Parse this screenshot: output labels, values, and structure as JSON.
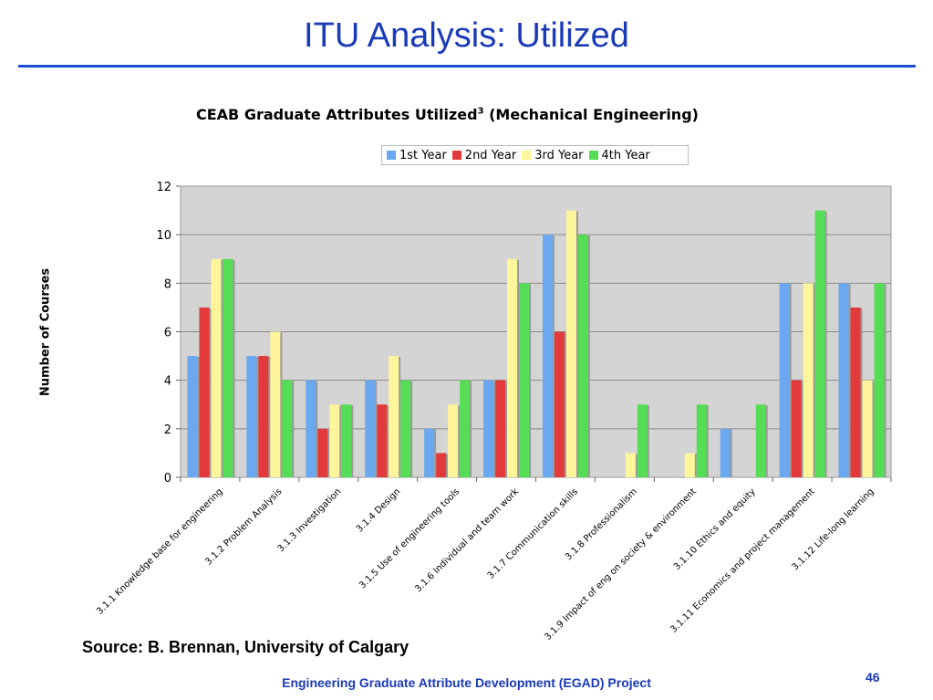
{
  "slide": {
    "title": "ITU Analysis: Utilized",
    "source": "Source: B.  Brennan, University of Calgary",
    "footer": "Engineering Graduate Attribute Development (EGAD) Project",
    "page_number": "46"
  },
  "chart_data": {
    "type": "bar",
    "title": "CEAB Graduate Attributes Utilized",
    "title_superscript": "3",
    "title_suffix": " (Mechanical Engineering)",
    "ylabel": "Number of Courses",
    "xlabel": "",
    "ylim": [
      0,
      12
    ],
    "yticks": [
      0,
      2,
      4,
      6,
      8,
      10,
      12
    ],
    "grid": true,
    "legend_position": "top",
    "categories": [
      "3.1.1 Knowledge base for engineering",
      "3.1.2 Problem Analysis",
      "3.1.3 Investigation",
      "3.1.4 Design",
      "3.1.5 Use of engineering tools",
      "3.1.6 Individual and team work",
      "3.1.7 Communication skills",
      "3.1.8 Professionalism",
      "3.1.9 Impact of eng on society & environment",
      "3.1.10 Ethics and equity",
      "3.1.11 Economics and project management",
      "3.1.12 Life-long learning"
    ],
    "series": [
      {
        "name": "1st Year",
        "color": "#6aa9ef",
        "values": [
          5,
          5,
          4,
          4,
          2,
          4,
          10,
          0,
          0,
          2,
          8,
          8
        ]
      },
      {
        "name": "2nd Year",
        "color": "#e23a3a",
        "values": [
          7,
          5,
          2,
          3,
          1,
          4,
          6,
          0,
          0,
          0,
          4,
          7
        ]
      },
      {
        "name": "3rd Year",
        "color": "#fff59a",
        "values": [
          9,
          6,
          3,
          5,
          3,
          9,
          11,
          1,
          1,
          0,
          8,
          4
        ]
      },
      {
        "name": "4th Year",
        "color": "#55dd55",
        "values": [
          9,
          4,
          3,
          4,
          4,
          8,
          10,
          3,
          3,
          3,
          11,
          8
        ]
      }
    ],
    "plot_background": "#d4d4d4"
  }
}
